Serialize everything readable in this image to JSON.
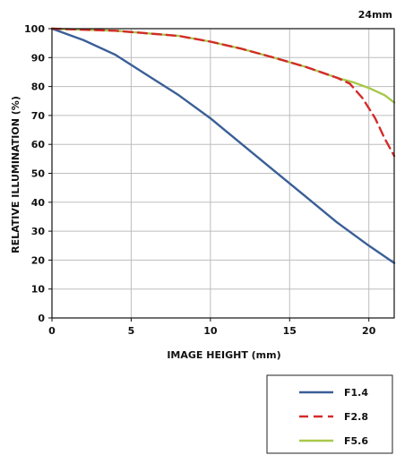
{
  "chart_data": {
    "type": "line",
    "title": "24mm",
    "xlabel": "IMAGE HEIGHT (mm)",
    "ylabel": "RELATIVE ILLUMINATION (%)",
    "xlim": [
      0,
      21.6
    ],
    "ylim": [
      0,
      100
    ],
    "xticks": [
      "0",
      "5",
      "10",
      "15",
      "20"
    ],
    "yticks": [
      "0",
      "10",
      "20",
      "30",
      "40",
      "50",
      "60",
      "70",
      "80",
      "90",
      "100"
    ],
    "grid": true,
    "legend_position": "bottom-right",
    "series": [
      {
        "name": "F1.4",
        "color": "#3a5f97",
        "dash": "solid",
        "x": [
          0,
          2,
          4,
          6,
          8,
          10,
          12,
          14,
          16,
          18,
          20,
          21.6
        ],
        "y": [
          100,
          96,
          91,
          84,
          77,
          69,
          60,
          51,
          42,
          33,
          25,
          19
        ]
      },
      {
        "name": "F2.8",
        "color": "#d42b2b",
        "dash": "dashed",
        "x": [
          0,
          4,
          8,
          10,
          12,
          14,
          16,
          18,
          18.8,
          19.6,
          20.4,
          21,
          21.6
        ],
        "y": [
          100,
          99.3,
          97.5,
          95.5,
          93,
          90,
          86.8,
          83,
          81,
          76,
          69,
          62,
          56
        ]
      },
      {
        "name": "F5.6",
        "color": "#a7c84a",
        "dash": "solid",
        "x": [
          0,
          4,
          8,
          10,
          12,
          14,
          16,
          18,
          19,
          20,
          21,
          21.6
        ],
        "y": [
          100,
          99.3,
          97.5,
          95.5,
          93,
          90,
          86.8,
          83,
          81.5,
          79.5,
          77,
          74.5
        ]
      }
    ]
  }
}
